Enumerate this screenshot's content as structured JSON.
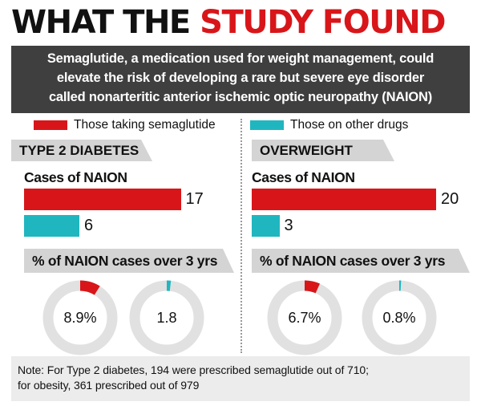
{
  "headline": {
    "part1": "WHAT THE ",
    "part2": "STUDY FOUND"
  },
  "intro": {
    "line1": "Semaglutide, a medication used for weight management, could",
    "line2": "elevate the risk of developing a rare but severe eye disorder",
    "line3": "called nonarteritic anterior ischemic optic neuropathy (NAION)"
  },
  "colors": {
    "semaglutide": "#d8161a",
    "other": "#1fb6bf",
    "ring": "#e1e1e1"
  },
  "legend": {
    "semaglutide": "Those taking semaglutide",
    "other": "Those on other drugs"
  },
  "chart_data": [
    {
      "type": "bar",
      "title": "TYPE 2 DIABETES",
      "subtitle": "Cases of NAION",
      "series": [
        {
          "name": "Those taking semaglutide",
          "values": [
            17
          ],
          "label": "17"
        },
        {
          "name": "Those on other drugs",
          "values": [
            6
          ],
          "label": "6"
        }
      ]
    },
    {
      "type": "bar",
      "title": "OVERWEIGHT",
      "subtitle": "Cases of NAION",
      "series": [
        {
          "name": "Those taking semaglutide",
          "values": [
            20
          ],
          "label": "20"
        },
        {
          "name": "Those on other drugs",
          "values": [
            3
          ],
          "label": "3"
        }
      ]
    },
    {
      "type": "pie",
      "title": "% of NAION cases over 3 yrs",
      "group": "TYPE 2 DIABETES",
      "values": [
        {
          "name": "Those taking semaglutide",
          "value": 8.9,
          "label": "8.9%"
        },
        {
          "name": "Those on other drugs",
          "value": 1.8,
          "label": "1.8"
        }
      ]
    },
    {
      "type": "pie",
      "title": "% of NAION cases over 3 yrs",
      "group": "OVERWEIGHT",
      "values": [
        {
          "name": "Those taking semaglutide",
          "value": 6.7,
          "label": "6.7%"
        },
        {
          "name": "Those on other drugs",
          "value": 0.8,
          "label": "0.8%"
        }
      ]
    }
  ],
  "note": {
    "line1": "Note: For Type 2 diabetes, 194 were prescribed semaglutide out of 710;",
    "line2": "for obesity, 361 prescribed out of 979"
  }
}
